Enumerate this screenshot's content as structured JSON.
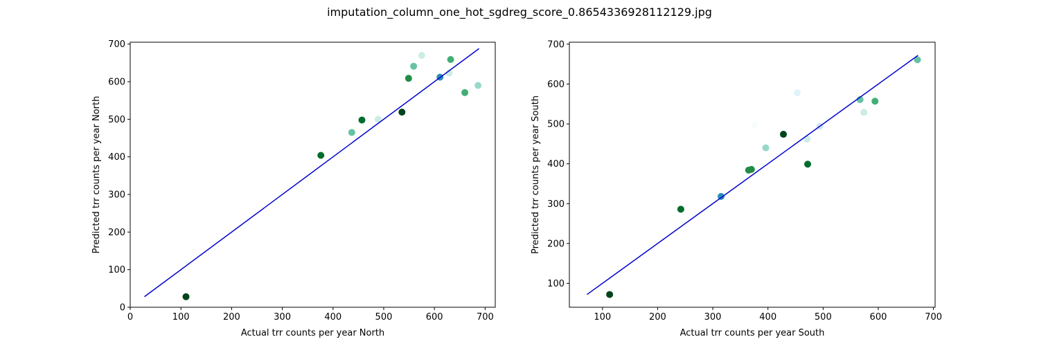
{
  "figure_title": "imputation_column_one_hot_sgdreg_score_0.8654336928112129.jpg",
  "chart_data": [
    {
      "type": "scatter",
      "title": "",
      "xlabel": "Actual trr counts per year North",
      "ylabel": "Predicted trr counts per year North",
      "xlim": [
        0,
        720
      ],
      "ylim": [
        0,
        705
      ],
      "xticks": [
        0,
        100,
        200,
        300,
        400,
        500,
        600,
        700
      ],
      "yticks": [
        0,
        100,
        200,
        300,
        400,
        500,
        600,
        700
      ],
      "grid": false,
      "reference_line": {
        "x": [
          28,
          688
        ],
        "y": [
          28,
          688
        ],
        "color": "#0000cc"
      },
      "points": [
        {
          "x": 110,
          "y": 28,
          "color": "#00441b"
        },
        {
          "x": 376,
          "y": 404,
          "color": "#006d2c"
        },
        {
          "x": 437,
          "y": 465,
          "color": "#66c2a4"
        },
        {
          "x": 457,
          "y": 498,
          "color": "#006d2c"
        },
        {
          "x": 489,
          "y": 500,
          "color": "#ccece6"
        },
        {
          "x": 536,
          "y": 519,
          "color": "#00441b"
        },
        {
          "x": 549,
          "y": 609,
          "color": "#238b45"
        },
        {
          "x": 559,
          "y": 641,
          "color": "#66c2a4"
        },
        {
          "x": 575,
          "y": 670,
          "color": "#ccece6"
        },
        {
          "x": 582,
          "y": 568,
          "color": "#f7fcfd"
        },
        {
          "x": 611,
          "y": 612,
          "color": "#2b8cbe"
        },
        {
          "x": 629,
          "y": 623,
          "color": "#ccece6"
        },
        {
          "x": 632,
          "y": 659,
          "color": "#41ae76"
        },
        {
          "x": 660,
          "y": 571,
          "color": "#41ae76"
        },
        {
          "x": 686,
          "y": 590,
          "color": "#99d8c9"
        }
      ]
    },
    {
      "type": "scatter",
      "title": "",
      "xlabel": "Actual trr counts per year South",
      "ylabel": "Predicted trr counts per year South",
      "xlim": [
        40,
        703
      ],
      "ylim": [
        40,
        705
      ],
      "xticks": [
        100,
        200,
        300,
        400,
        500,
        600,
        700
      ],
      "yticks": [
        100,
        200,
        300,
        400,
        500,
        600,
        700
      ],
      "grid": false,
      "reference_line": {
        "x": [
          72,
          672
        ],
        "y": [
          72,
          672
        ],
        "color": "#0000cc"
      },
      "points": [
        {
          "x": 113,
          "y": 72,
          "color": "#00441b"
        },
        {
          "x": 242,
          "y": 286,
          "color": "#006d2c"
        },
        {
          "x": 315,
          "y": 318,
          "color": "#2b8cbe"
        },
        {
          "x": 365,
          "y": 384,
          "color": "#238b45"
        },
        {
          "x": 370,
          "y": 386,
          "color": "#238b45"
        },
        {
          "x": 376,
          "y": 497,
          "color": "#f7fcfd"
        },
        {
          "x": 396,
          "y": 440,
          "color": "#99d8c9"
        },
        {
          "x": 428,
          "y": 474,
          "color": "#00441b"
        },
        {
          "x": 453,
          "y": 578,
          "color": "#e0f3f8"
        },
        {
          "x": 471,
          "y": 462,
          "color": "#ccece6"
        },
        {
          "x": 472,
          "y": 399,
          "color": "#006d2c"
        },
        {
          "x": 494,
          "y": 494,
          "color": "#d0e4f5"
        },
        {
          "x": 567,
          "y": 561,
          "color": "#66c2a4"
        },
        {
          "x": 574,
          "y": 529,
          "color": "#ccece6"
        },
        {
          "x": 594,
          "y": 557,
          "color": "#41ae76"
        },
        {
          "x": 671,
          "y": 661,
          "color": "#66c2a4"
        }
      ]
    }
  ]
}
